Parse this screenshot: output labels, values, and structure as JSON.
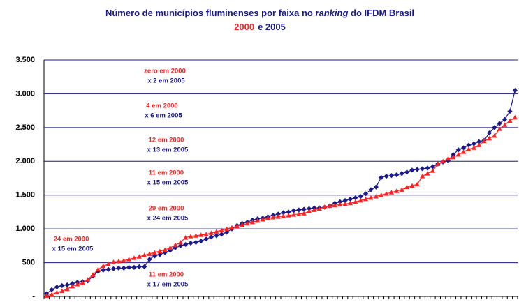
{
  "chart_data": {
    "type": "line",
    "title": [
      "Número de municípios fluminenses por faixa no ",
      "ranking",
      " do IFDM Brasil"
    ],
    "subtitle": [
      "2000",
      "e 2005"
    ],
    "categories": [
      null,
      null,
      null,
      null,
      null,
      null,
      null,
      null,
      null,
      null,
      null,
      null,
      null,
      null,
      null,
      null,
      null,
      null,
      null,
      null,
      null,
      null,
      null,
      null,
      null,
      null,
      null,
      null,
      null,
      null,
      null,
      null,
      null,
      null,
      null,
      null,
      null,
      null,
      null,
      null,
      null,
      null,
      null,
      null,
      null,
      null,
      null,
      null,
      null,
      null,
      null,
      null,
      null,
      null,
      null,
      null,
      null,
      null,
      null,
      null,
      null,
      null,
      null,
      null,
      null,
      null,
      null,
      null,
      null,
      null,
      null,
      null,
      null,
      null,
      null,
      null,
      null,
      null,
      null,
      null,
      null,
      null,
      null,
      null,
      null,
      null,
      null,
      null,
      null,
      null,
      null,
      null
    ],
    "series": [
      {
        "color": "#1a1a8c",
        "marker": "diamond",
        "values": [
          40,
          100,
          140,
          160,
          170,
          190,
          210,
          220,
          230,
          300,
          370,
          390,
          400,
          410,
          420,
          420,
          430,
          430,
          440,
          440,
          550,
          600,
          620,
          650,
          680,
          720,
          750,
          770,
          790,
          800,
          820,
          850,
          880,
          900,
          920,
          950,
          1000,
          1050,
          1080,
          1100,
          1130,
          1150,
          1160,
          1180,
          1200,
          1220,
          1240,
          1250,
          1270,
          1280,
          1290,
          1300,
          1310,
          1310,
          1320,
          1340,
          1380,
          1400,
          1420,
          1440,
          1460,
          1480,
          1520,
          1580,
          1620,
          1760,
          1780,
          1790,
          1800,
          1820,
          1840,
          1870,
          1880,
          1890,
          1900,
          1920,
          1960,
          1990,
          2010,
          2100,
          2170,
          2200,
          2240,
          2260,
          2290,
          2310,
          2420,
          2500,
          2560,
          2620,
          2740,
          3050
        ]
      },
      {
        "color": "#ff2020",
        "marker": "triangle",
        "values": [
          10,
          30,
          60,
          80,
          110,
          150,
          180,
          200,
          250,
          320,
          400,
          450,
          480,
          510,
          520,
          530,
          550,
          570,
          590,
          610,
          630,
          650,
          670,
          690,
          720,
          760,
          800,
          870,
          890,
          900,
          910,
          920,
          940,
          960,
          980,
          1000,
          1020,
          1040,
          1060,
          1080,
          1100,
          1120,
          1140,
          1160,
          1170,
          1180,
          1190,
          1200,
          1210,
          1220,
          1230,
          1260,
          1280,
          1300,
          1320,
          1340,
          1350,
          1360,
          1370,
          1380,
          1400,
          1420,
          1440,
          1460,
          1480,
          1500,
          1520,
          1540,
          1560,
          1580,
          1620,
          1640,
          1660,
          1780,
          1820,
          1860,
          1960,
          2000,
          2040,
          2060,
          2100,
          2140,
          2180,
          2200,
          2240,
          2300,
          2340,
          2380,
          2480,
          2540,
          2600,
          2650
        ]
      }
    ],
    "ylim": [
      0,
      3500
    ],
    "yticks": [
      {
        "value": 0,
        "label": "-"
      },
      500,
      {
        "value": 1000,
        "label": "1.000"
      },
      {
        "value": 1500,
        "label": "1.500"
      },
      {
        "value": 2000,
        "label": "2.000"
      },
      {
        "value": 2500,
        "label": "2.500"
      },
      {
        "value": 3000,
        "label": "3.000"
      },
      {
        "value": 3500,
        "label": "3.500"
      }
    ],
    "grid": true,
    "annotations": [
      [
        "zero em 2000",
        "x 2 em 2005"
      ],
      [
        "4 em 2000",
        "x 6 em 2005"
      ],
      [
        "12 em 2000",
        "x 13 em 2005"
      ],
      [
        "11 em 2000",
        "x 15 em 2005"
      ],
      [
        "29 em 2000",
        "x 24 em 2005"
      ],
      [
        "24 em 2000",
        "x 15 em 2005"
      ],
      [
        "11 em 2000",
        "x 17 em 2005"
      ]
    ]
  }
}
